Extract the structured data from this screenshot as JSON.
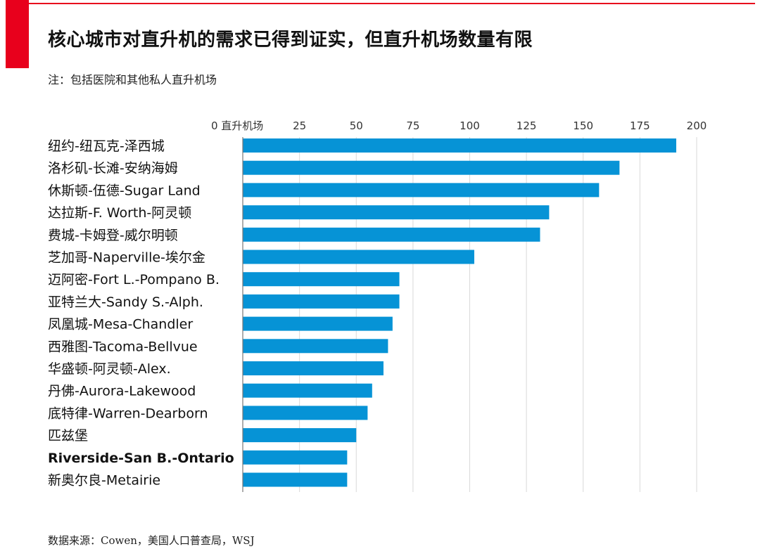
{
  "header": {
    "title": "核心城市对直升机的需求已得到证实，但直升机场数量有限",
    "note": "注：包括医院和其他私人直升机场"
  },
  "footer": {
    "source": "数据来源：Cowen，美国人口普查局，WSJ"
  },
  "colors": {
    "accent": "#e8001c",
    "bar": "#0693d6",
    "grid": "#d9d9d9"
  },
  "chart_data": {
    "type": "bar",
    "orientation": "horizontal",
    "title": "",
    "xlabel": "",
    "ylabel": "",
    "xlim": [
      0,
      200
    ],
    "grid": true,
    "tick_values": [
      0,
      25,
      50,
      75,
      100,
      125,
      150,
      175,
      200
    ],
    "tick_labels": [
      "0 直升机场",
      "25",
      "50",
      "75",
      "100",
      "125",
      "150",
      "175",
      "200"
    ],
    "categories": [
      "纽约-纽瓦克-泽西城",
      "洛杉矶-长滩-安纳海姆",
      "休斯顿-伍德-Sugar Land",
      "达拉斯-F. Worth-阿灵顿",
      "费城-卡姆登-威尔明顿",
      "芝加哥-Naperville-埃尔金",
      "迈阿密-Fort L.-Pompano B.",
      "亚特兰大-Sandy S.-Alph.",
      "凤凰城-Mesa-Chandler",
      "西雅图-Tacoma-Bellvue",
      "华盛顿-阿灵顿-Alex.",
      "丹佛-Aurora-Lakewood",
      "底特律-Warren-Dearborn",
      "匹兹堡",
      "Riverside-San B.-Ontario",
      "新奥尔良-Metairie"
    ],
    "values": [
      191,
      166,
      157,
      135,
      131,
      102,
      69,
      69,
      66,
      64,
      62,
      57,
      55,
      50,
      46,
      46
    ],
    "highlighted_category": "Riverside-San B.-Ontario"
  }
}
